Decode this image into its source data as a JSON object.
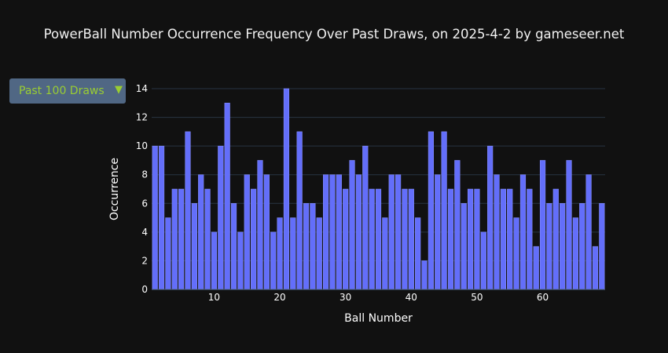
{
  "title": "PowerBall Number Occurrence Frequency Over Past Draws, on 2025-4-2 by gameseer.net",
  "dropdown": {
    "selected": "Past 100 Draws",
    "arrow": "▼"
  },
  "colors": {
    "bar": "#636efa",
    "background": "#111111",
    "grid": "#283442",
    "dropdown_bg": "#506784",
    "dropdown_text": "#9acd32"
  },
  "chart_data": {
    "type": "bar",
    "xlabel": "Ball Number",
    "ylabel": "Occurrence",
    "xlim": [
      0.5,
      69.5
    ],
    "ylim": [
      0,
      14
    ],
    "xticks": [
      10,
      20,
      30,
      40,
      50,
      60
    ],
    "yticks": [
      0,
      2,
      4,
      6,
      8,
      10,
      12,
      14
    ],
    "grid": true,
    "x": [
      1,
      2,
      3,
      4,
      5,
      6,
      7,
      8,
      9,
      10,
      11,
      12,
      13,
      14,
      15,
      16,
      17,
      18,
      19,
      20,
      21,
      22,
      23,
      24,
      25,
      26,
      27,
      28,
      29,
      30,
      31,
      32,
      33,
      34,
      35,
      36,
      37,
      38,
      39,
      40,
      41,
      42,
      43,
      44,
      45,
      46,
      47,
      48,
      49,
      50,
      51,
      52,
      53,
      54,
      55,
      56,
      57,
      58,
      59,
      60,
      61,
      62,
      63,
      64,
      65,
      66,
      67,
      68,
      69
    ],
    "values": [
      10,
      10,
      5,
      7,
      7,
      11,
      6,
      8,
      7,
      4,
      10,
      13,
      6,
      4,
      8,
      7,
      9,
      8,
      4,
      5,
      14,
      5,
      11,
      6,
      6,
      5,
      8,
      8,
      8,
      7,
      9,
      8,
      10,
      7,
      7,
      5,
      8,
      8,
      7,
      7,
      5,
      2,
      11,
      8,
      11,
      7,
      9,
      6,
      7,
      7,
      4,
      10,
      8,
      7,
      7,
      5,
      8,
      7,
      3,
      9,
      6,
      7,
      6,
      9,
      5,
      6,
      8,
      3,
      6
    ]
  }
}
